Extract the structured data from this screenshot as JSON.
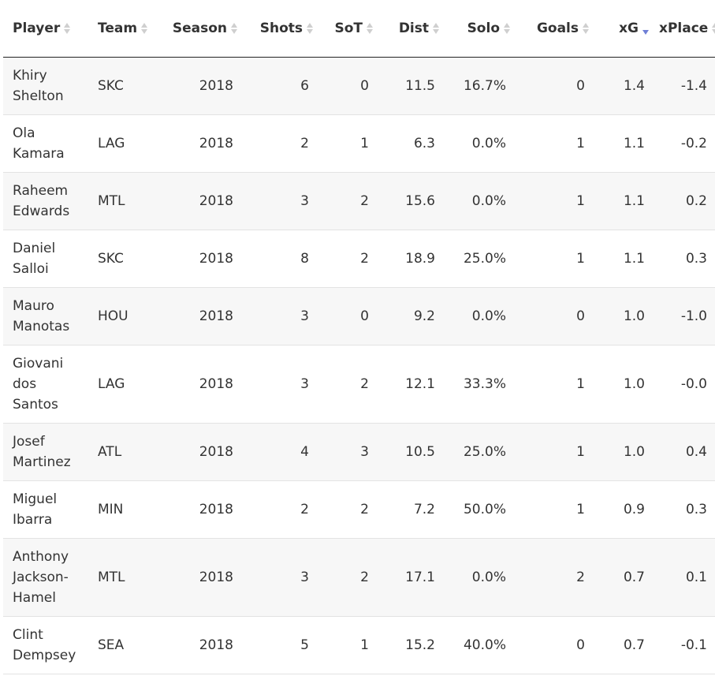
{
  "table": {
    "headers": {
      "player": "Player",
      "team": "Team",
      "season": "Season",
      "shots": "Shots",
      "sot": "SoT",
      "dist": "Dist",
      "solo": "Solo",
      "goals": "Goals",
      "xg": "xG",
      "xplace": "xPlace"
    },
    "sort": {
      "column": "xG",
      "direction": "descending"
    },
    "rows": [
      {
        "player": "Khiry Shelton",
        "team": "SKC",
        "season": "2018",
        "shots": "6",
        "sot": "0",
        "dist": "11.5",
        "solo": "16.7%",
        "goals": "0",
        "xg": "1.4",
        "xplace": "-1.4"
      },
      {
        "player": "Ola Kamara",
        "team": "LAG",
        "season": "2018",
        "shots": "2",
        "sot": "1",
        "dist": "6.3",
        "solo": "0.0%",
        "goals": "1",
        "xg": "1.1",
        "xplace": "-0.2"
      },
      {
        "player": "Raheem Edwards",
        "team": "MTL",
        "season": "2018",
        "shots": "3",
        "sot": "2",
        "dist": "15.6",
        "solo": "0.0%",
        "goals": "1",
        "xg": "1.1",
        "xplace": "0.2"
      },
      {
        "player": "Daniel Salloi",
        "team": "SKC",
        "season": "2018",
        "shots": "8",
        "sot": "2",
        "dist": "18.9",
        "solo": "25.0%",
        "goals": "1",
        "xg": "1.1",
        "xplace": "0.3"
      },
      {
        "player": "Mauro Manotas",
        "team": "HOU",
        "season": "2018",
        "shots": "3",
        "sot": "0",
        "dist": "9.2",
        "solo": "0.0%",
        "goals": "0",
        "xg": "1.0",
        "xplace": "-1.0"
      },
      {
        "player": "Giovani dos Santos",
        "team": "LAG",
        "season": "2018",
        "shots": "3",
        "sot": "2",
        "dist": "12.1",
        "solo": "33.3%",
        "goals": "1",
        "xg": "1.0",
        "xplace": "-0.0"
      },
      {
        "player": "Josef Martinez",
        "team": "ATL",
        "season": "2018",
        "shots": "4",
        "sot": "3",
        "dist": "10.5",
        "solo": "25.0%",
        "goals": "1",
        "xg": "1.0",
        "xplace": "0.4"
      },
      {
        "player": "Miguel Ibarra",
        "team": "MIN",
        "season": "2018",
        "shots": "2",
        "sot": "2",
        "dist": "7.2",
        "solo": "50.0%",
        "goals": "1",
        "xg": "0.9",
        "xplace": "0.3"
      },
      {
        "player": "Anthony Jackson-Hamel",
        "team": "MTL",
        "season": "2018",
        "shots": "3",
        "sot": "2",
        "dist": "17.1",
        "solo": "0.0%",
        "goals": "2",
        "xg": "0.7",
        "xplace": "0.1"
      },
      {
        "player": "Clint Dempsey",
        "team": "SEA",
        "season": "2018",
        "shots": "5",
        "sot": "1",
        "dist": "15.2",
        "solo": "40.0%",
        "goals": "0",
        "xg": "0.7",
        "xplace": "-0.1"
      }
    ]
  }
}
